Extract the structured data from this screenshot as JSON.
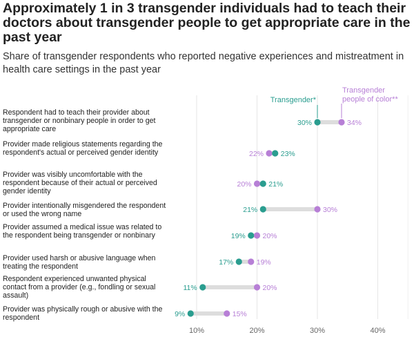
{
  "title": "Approximately 1 in 3 transgender individuals had to teach their doctors about transgender people to get appropriate care in the past year",
  "subtitle": "Share of transgender respondents who reported negative experiences and mistreatment in health care settings in the past year",
  "chart_data": {
    "type": "dot",
    "xlim": [
      5,
      45
    ],
    "xticks": [
      "10%",
      "20%",
      "30%",
      "40%"
    ],
    "xtick_values": [
      10,
      20,
      30,
      40
    ],
    "grid": true,
    "colors": {
      "transgender": "#2a9d8f",
      "poc": "#b77fd6",
      "connector": "#dddddd"
    },
    "series": [
      {
        "name": "Transgender*",
        "key": "transgender"
      },
      {
        "name": "Transgender people of color**",
        "key": "poc"
      }
    ],
    "categories": [
      "Respondent had to teach their provider about transgender or nonbinary people in order to get appropriate care",
      "Provider made religious statements regarding the respondent's actual or perceived gender identity",
      "Provider was visibly uncomfortable with the respondent because of their actual or perceived gender identity",
      "Provider intentionally misgendered the respondent or used the wrong name",
      "Provider assumed a medical issue was related to the respondent being transgender or nonbinary",
      "Provider used harsh or abusive language when treating the respondent",
      "Respondent experienced unwanted physical contact from a provider (e.g., fondling or sexual assault)",
      "Provider was physically rough or abusive with the respondent"
    ],
    "transgender": [
      30,
      23,
      21,
      21,
      19,
      17,
      11,
      9
    ],
    "poc": [
      34,
      22,
      20,
      30,
      20,
      19,
      20,
      15
    ],
    "transgender_labels": [
      "30%",
      "23%",
      "21%",
      "21%",
      "19%",
      "17%",
      "11%",
      "9%"
    ],
    "poc_labels": [
      "34%",
      "22%",
      "20%",
      "30%",
      "20%",
      "19%",
      "20%",
      "15%"
    ]
  }
}
